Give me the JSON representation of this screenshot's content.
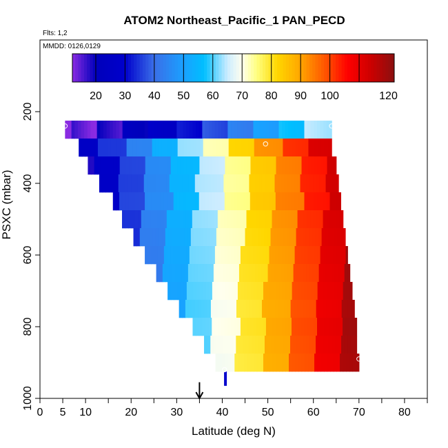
{
  "chart_data": {
    "type": "heatmap",
    "title": "ATOM2 Northeast_Pacific_1 PAN_PECD",
    "subtitle_flights": "Flts: 1,2",
    "subtitle_dates": "MMDD: 0126,0129",
    "xlabel": "Latitude (deg N)",
    "ylabel": "PSXC (mbar)",
    "xlim": [
      0,
      85
    ],
    "ylim": [
      1000,
      0
    ],
    "x_ticks": [
      0,
      5,
      10,
      20,
      30,
      40,
      50,
      60,
      70,
      80
    ],
    "x_minor_ticks": [
      15,
      25,
      35,
      45,
      55,
      65,
      75,
      85
    ],
    "y_ticks": [
      200,
      400,
      600,
      800,
      1000
    ],
    "colorbar": {
      "range": [
        12,
        122
      ],
      "ticks": [
        20,
        30,
        40,
        50,
        60,
        70,
        80,
        90,
        100,
        120
      ],
      "divisions": [
        12,
        20,
        30,
        40,
        50,
        60,
        70,
        80,
        90,
        100,
        110,
        122
      ]
    },
    "colorscale": [
      {
        "v": 12,
        "c": "#8a2be2"
      },
      {
        "v": 20,
        "c": "#0000bb"
      },
      {
        "v": 30,
        "c": "#0000cc"
      },
      {
        "v": 40,
        "c": "#3a6fe8"
      },
      {
        "v": 50,
        "c": "#1aa0ff"
      },
      {
        "v": 57,
        "c": "#00bfff"
      },
      {
        "v": 65,
        "c": "#ccecff"
      },
      {
        "v": 70,
        "c": "#ffffee"
      },
      {
        "v": 75,
        "c": "#ffff80"
      },
      {
        "v": 82,
        "c": "#ffd700"
      },
      {
        "v": 90,
        "c": "#ffa500"
      },
      {
        "v": 100,
        "c": "#ff4500"
      },
      {
        "v": 106,
        "c": "#ff0000"
      },
      {
        "v": 114,
        "c": "#cc0000"
      },
      {
        "v": 122,
        "c": "#8b1010"
      }
    ],
    "rows": [
      {
        "p_top": 225,
        "p_bot": 275,
        "lat0": 5.5,
        "lat1": 64
      },
      {
        "p_top": 275,
        "p_bot": 325,
        "lat0": 8.5,
        "lat1": 64
      },
      {
        "p_top": 325,
        "p_bot": 375,
        "lat0": 10.5,
        "lat1": 65
      },
      {
        "p_top": 375,
        "p_bot": 425,
        "lat0": 13,
        "lat1": 65.5
      },
      {
        "p_top": 425,
        "p_bot": 475,
        "lat0": 16,
        "lat1": 66
      },
      {
        "p_top": 475,
        "p_bot": 525,
        "lat0": 18,
        "lat1": 66.5
      },
      {
        "p_top": 525,
        "p_bot": 575,
        "lat0": 20.5,
        "lat1": 67
      },
      {
        "p_top": 575,
        "p_bot": 625,
        "lat0": 23,
        "lat1": 67.5
      },
      {
        "p_top": 625,
        "p_bot": 675,
        "lat0": 25.5,
        "lat1": 68
      },
      {
        "p_top": 675,
        "p_bot": 725,
        "lat0": 28,
        "lat1": 68.5
      },
      {
        "p_top": 725,
        "p_bot": 775,
        "lat0": 30.5,
        "lat1": 69
      },
      {
        "p_top": 775,
        "p_bot": 825,
        "lat0": 33.5,
        "lat1": 69.5
      },
      {
        "p_top": 825,
        "p_bot": 875,
        "lat0": 36,
        "lat1": 69.5
      },
      {
        "p_top": 875,
        "p_bot": 925,
        "lat0": 38.5,
        "lat1": 70
      }
    ],
    "flight_points": [
      {
        "lat": 5.5,
        "p": 240
      },
      {
        "lat": 49.5,
        "p": 290
      },
      {
        "lat": 64,
        "p": 240
      },
      {
        "lat": 70,
        "p": 890
      },
      {
        "lat": 40.5,
        "p": 920
      }
    ],
    "profile_bar": {
      "lat": 40.7,
      "p_top": 925,
      "p_bot": 965
    },
    "arrow_marker": {
      "lat": 35,
      "p_top": 955,
      "p_bot": 1000
    }
  }
}
